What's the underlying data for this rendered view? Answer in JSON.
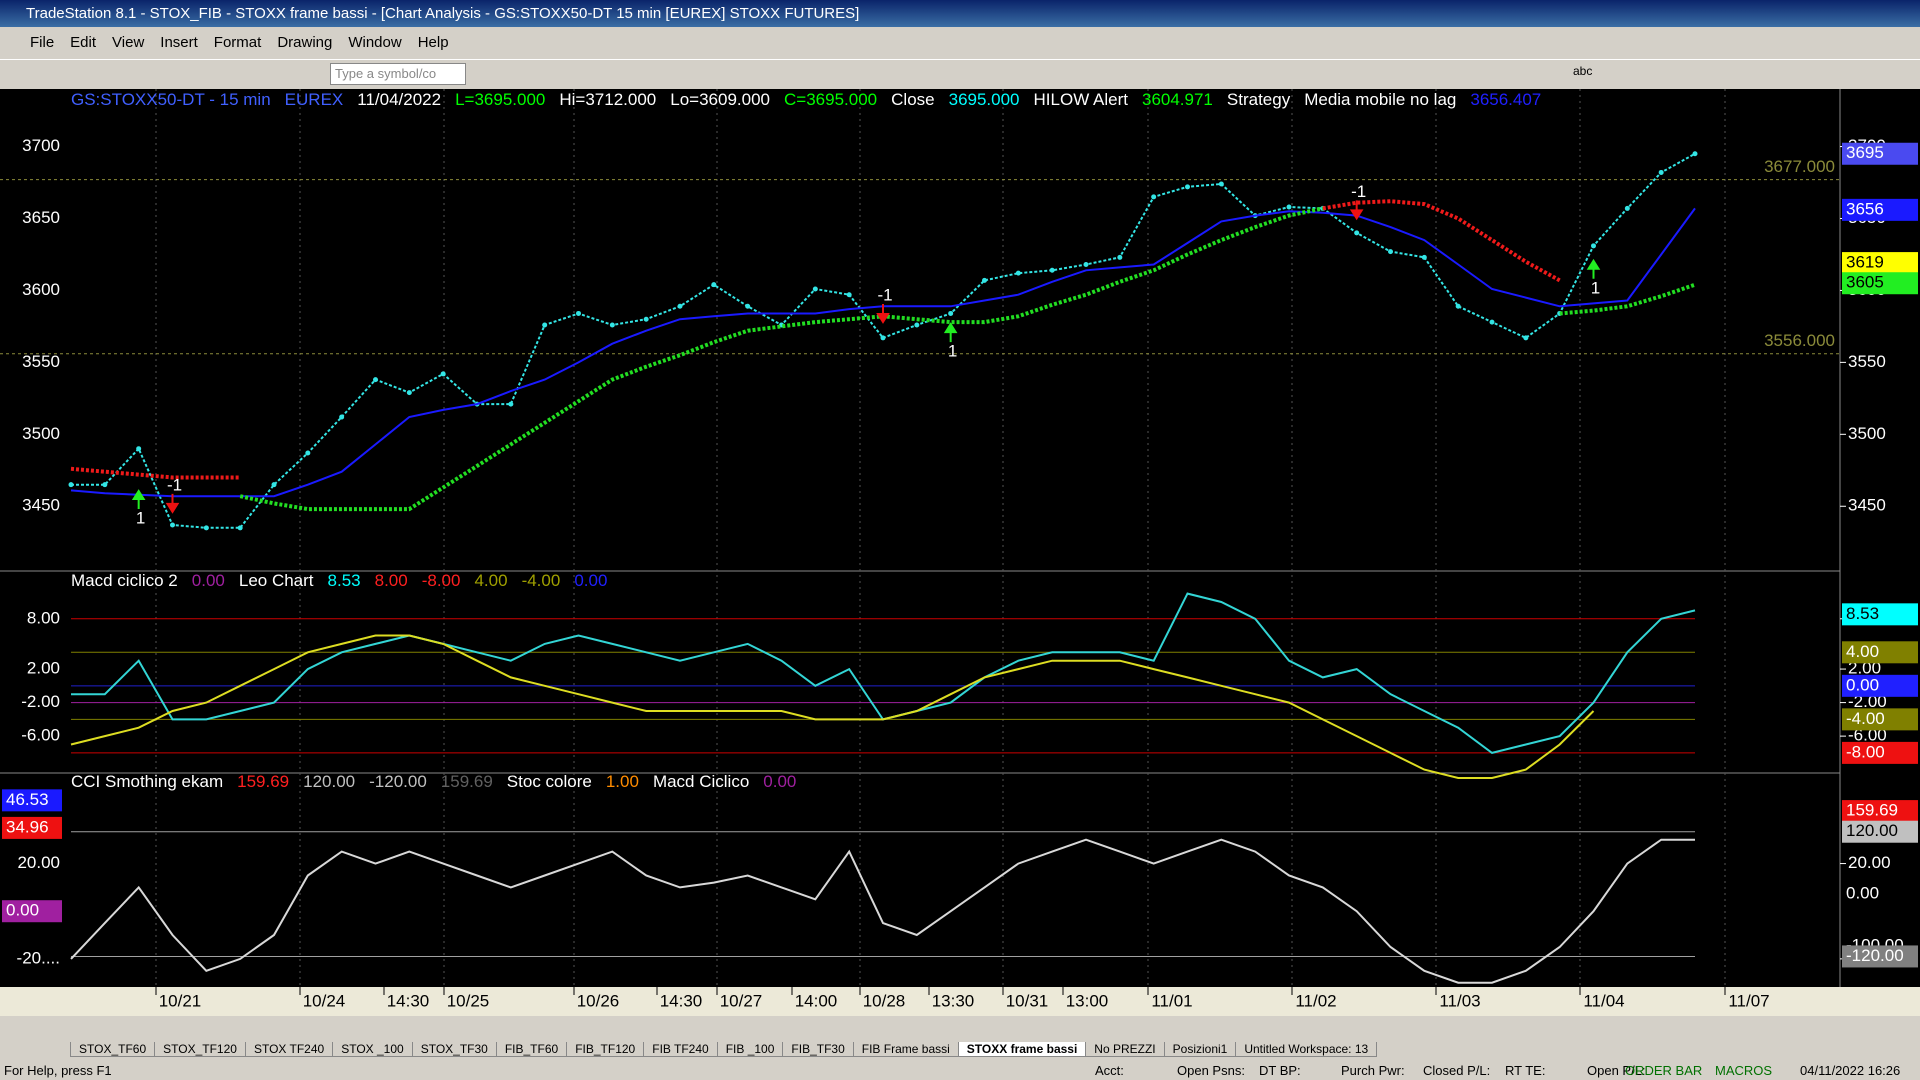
{
  "window": {
    "title": "TradeStation 8.1 - STOX_FIB - STOXX frame bassi - [Chart Analysis - GS:STOXX50-DT  15 min  [EUREX] STOXX FUTURES]"
  },
  "menu": [
    "File",
    "Edit",
    "View",
    "Insert",
    "Format",
    "Drawing",
    "Window",
    "Help"
  ],
  "toolbar": {
    "symbol_box": "Type a symbol/co",
    "text_tool": "abc"
  },
  "price_pane": {
    "header": [
      {
        "text": "GS:STOXX50-DT - 15 min",
        "color": "#4060ff"
      },
      {
        "text": "EUREX",
        "color": "#4060ff"
      },
      {
        "text": "11/04/2022",
        "color": "#ffffff"
      },
      {
        "text": "L=3695.000",
        "color": "#00ff00"
      },
      {
        "text": "Hi=3712.000",
        "color": "#ffffff"
      },
      {
        "text": "Lo=3609.000",
        "color": "#ffffff"
      },
      {
        "text": "C=3695.000",
        "color": "#00ff00"
      },
      {
        "text": "Close",
        "color": "#ffffff"
      },
      {
        "text": "3695.000",
        "color": "#00ffff"
      },
      {
        "text": "HILOW Alert",
        "color": "#ffffff"
      },
      {
        "text": "3604.971",
        "color": "#00ff00"
      },
      {
        "text": "Strategy",
        "color": "#ffffff"
      },
      {
        "text": "Media mobile no lag",
        "color": "#ffffff"
      },
      {
        "text": "3656.407",
        "color": "#2020ff"
      }
    ],
    "chart": {
      "type": "line",
      "ylim": [
        3405,
        3740
      ],
      "yticks": [
        3450,
        3500,
        3550,
        3600,
        3650,
        3700
      ],
      "series": [
        {
          "name": "Close",
          "color": "#33e5e5",
          "values": [
            3465,
            3465,
            3490,
            3437,
            3435,
            3435,
            3465,
            3487,
            3512,
            3538,
            3529,
            3542,
            3521,
            3521,
            3576,
            3584,
            3576,
            3580,
            3589,
            3604,
            3589,
            3576,
            3601,
            3597,
            3567,
            3576,
            3584,
            3607,
            3612,
            3614,
            3618,
            3623,
            3665,
            3672,
            3674,
            3652,
            3658,
            3657,
            3640,
            3627,
            3623,
            3589,
            3578,
            3567,
            3584,
            3631,
            3657,
            3682,
            3695
          ]
        },
        {
          "name": "Media mobile no lag",
          "color": "#1a1aff",
          "values": [
            3461,
            3459,
            3458,
            3457,
            3457,
            3457,
            3457,
            3465,
            3474,
            3493,
            3512,
            3517,
            3521,
            3530,
            3538,
            3550,
            3563,
            3572,
            3580,
            3582,
            3584,
            3584,
            3584,
            3587,
            3589,
            3589,
            3589,
            3593,
            3597,
            3606,
            3614,
            3616,
            3618,
            3633,
            3648,
            3652,
            3655,
            3654,
            3652,
            3644,
            3635,
            3618,
            3601,
            3595,
            3589,
            3591,
            3593,
            3625,
            3657
          ]
        },
        {
          "name": "HILOW Alert",
          "color": "#22dd22",
          "values": [
            null,
            null,
            null,
            null,
            null,
            3457,
            3452,
            3448,
            3448,
            3448,
            3448,
            3463,
            3478,
            3493,
            3508,
            3523,
            3538,
            3547,
            3555,
            3564,
            3572,
            3575,
            3578,
            3580,
            3582,
            3580,
            3578,
            3578,
            3582,
            3590,
            3597,
            3606,
            3614,
            3625,
            3635,
            3644,
            3652,
            3657,
            null,
            null,
            null,
            null,
            null,
            null,
            3584,
            3586,
            3589,
            3596,
            3604
          ]
        },
        {
          "name": "HILOW Alert",
          "color": "#ee1a1a",
          "values": [
            3476,
            3474,
            3472,
            3470,
            3470,
            3470,
            null,
            null,
            null,
            null,
            null,
            null,
            null,
            null,
            null,
            null,
            null,
            null,
            null,
            null,
            null,
            null,
            null,
            null,
            null,
            null,
            null,
            null,
            null,
            null,
            null,
            null,
            null,
            null,
            null,
            null,
            null,
            3657,
            3661,
            3662,
            3660,
            3650,
            3635,
            3620,
            3607,
            null,
            null,
            null,
            null
          ]
        }
      ],
      "signals": [
        {
          "x": 2,
          "y": 3462,
          "value": 1
        },
        {
          "x": 3,
          "y": 3460,
          "value": -1
        },
        {
          "x": 24,
          "y": 3592,
          "value": -1
        },
        {
          "x": 26,
          "y": 3578,
          "value": 1
        },
        {
          "x": 38,
          "y": 3664,
          "value": -1
        },
        {
          "x": 45,
          "y": 3622,
          "value": 1
        }
      ],
      "ref_lines": [
        {
          "value": 3677,
          "label": "3677.000"
        },
        {
          "value": 3556,
          "label": "3556.000"
        }
      ],
      "badges": [
        {
          "value": 3695,
          "color": "#4a4af0"
        },
        {
          "value": 3656,
          "color": "#1a1aff"
        },
        {
          "value": 3619,
          "color": "#ffff00"
        },
        {
          "value": 3605,
          "color": "#22ee22"
        }
      ]
    }
  },
  "macd_pane": {
    "header": [
      {
        "text": "Macd ciclico 2",
        "color": "#ffffff"
      },
      {
        "text": "0.00",
        "color": "#a020a0"
      },
      {
        "text": "Leo Chart",
        "color": "#ffffff"
      },
      {
        "text": "8.53",
        "color": "#00ffff"
      },
      {
        "text": "8.00",
        "color": "#ff2020"
      },
      {
        "text": "-8.00",
        "color": "#ff2020"
      },
      {
        "text": "4.00",
        "color": "#a0a000"
      },
      {
        "text": "-4.00",
        "color": "#a0a000"
      },
      {
        "text": "0.00",
        "color": "#2020ff"
      }
    ],
    "chart": {
      "type": "line",
      "ylim": [
        -10.4,
        13.7
      ],
      "yticks": [
        {
          "value": 8,
          "label": "8.00"
        },
        {
          "value": 2,
          "label": "2.00"
        },
        {
          "value": -2,
          "label": "-2.00"
        },
        {
          "value": -6,
          "label": "-6.00"
        }
      ],
      "levels": [
        {
          "value": 8,
          "color": "#cc0000"
        },
        {
          "value": 4,
          "color": "#808000"
        },
        {
          "value": 0,
          "color": "#2020cc"
        },
        {
          "value": -2,
          "color": "#a020a0"
        },
        {
          "value": -4,
          "color": "#808000"
        },
        {
          "value": -8,
          "color": "#cc0000"
        }
      ],
      "series": [
        {
          "name": "Leo Chart",
          "color": "#33d5d5",
          "values": [
            -1,
            -1,
            3,
            -4,
            -4,
            -3,
            -2,
            2,
            4,
            5,
            6,
            5,
            4,
            3,
            5,
            6,
            5,
            4,
            3,
            4,
            5,
            3,
            0,
            2,
            -4,
            -3,
            -2,
            1,
            3,
            4,
            4,
            4,
            3,
            11,
            10,
            8,
            3,
            1,
            2,
            -1,
            -3,
            -5,
            -8,
            -7,
            -6,
            -2,
            4,
            8,
            9
          ]
        },
        {
          "name": "Macd ciclico 2",
          "color": "#dddd22",
          "values": [
            -7,
            -6,
            -5,
            -3,
            -2,
            0,
            2,
            4,
            5,
            6,
            6,
            5,
            3,
            1,
            0,
            -1,
            -2,
            -3,
            -3,
            -3,
            -3,
            -3,
            -4,
            -4,
            -4,
            -3,
            -1,
            1,
            2,
            3,
            3,
            3,
            2,
            1,
            0,
            -1,
            -2,
            -4,
            -6,
            -8,
            -10,
            -11,
            -11,
            -10,
            -7,
            -3,
            null,
            null,
            null
          ]
        }
      ],
      "badges": [
        {
          "value": 8.53,
          "color": "#00ffff"
        },
        {
          "value": 4,
          "label": "4.00",
          "color": "#808000"
        },
        {
          "value": 0,
          "label": "0.00",
          "color": "#2020ff"
        },
        {
          "value": -4,
          "label": "-4.00",
          "color": "#808000"
        },
        {
          "value": -8,
          "label": "-8.00",
          "color": "#ee1111"
        }
      ]
    }
  },
  "cci_pane": {
    "header": [
      {
        "text": "CCI Smothing ekam",
        "color": "#ffffff"
      },
      {
        "text": "159.69",
        "color": "#ff2020"
      },
      {
        "text": "120.00",
        "color": "#c0c0c0"
      },
      {
        "text": "-120.00",
        "color": "#c0c0c0"
      },
      {
        "text": "159.69",
        "color": "#606060"
      },
      {
        "text": "Stoc colore",
        "color": "#ffffff"
      },
      {
        "text": "1.00",
        "color": "#ff8c00"
      },
      {
        "text": "Macd Ciclico",
        "color": "#ffffff"
      },
      {
        "text": "0.00",
        "color": "#a020a0"
      }
    ],
    "chart": {
      "type": "line",
      "ylim": [
        -31.8,
        58
      ],
      "y2lim": [
        -178.8,
        233
      ],
      "yticks": [
        {
          "value": 20,
          "label": "20.00"
        },
        {
          "value": -20,
          "label": "-20...."
        }
      ],
      "left_badges": [
        {
          "value": 46.53,
          "color": "#1a1aff"
        },
        {
          "value": 34.96,
          "color": "#ee1111"
        },
        {
          "value": 0,
          "label": "0.00",
          "color": "#a020a0"
        }
      ],
      "right_badges": [
        {
          "value": 159.69,
          "color": "#ee1111"
        },
        {
          "value": 120,
          "label": "120.00",
          "color": "#c0c0c0"
        },
        {
          "value": 0,
          "label": "0.00",
          "color": "#000000"
        },
        {
          "value": -100,
          "label": "-100.00",
          "color": "#000000"
        },
        {
          "value": -120,
          "label": "-120.00",
          "color": "#808080"
        }
      ],
      "levels2": [
        {
          "value": 120,
          "color": "#a0a0a0"
        },
        {
          "value": -120,
          "color": "#a0a0a0"
        }
      ],
      "series": [
        {
          "name": "CCI Smothing ekam",
          "color": "#d8d8d8",
          "values": [
            -20,
            -5,
            10,
            -10,
            -25,
            -20,
            -10,
            15,
            25,
            20,
            25,
            20,
            15,
            10,
            15,
            20,
            25,
            15,
            10,
            12,
            15,
            10,
            5,
            25,
            -5,
            -10,
            0,
            10,
            20,
            25,
            30,
            25,
            20,
            25,
            30,
            25,
            15,
            10,
            0,
            -15,
            -25,
            -30,
            -30,
            -25,
            -15,
            0,
            20,
            30,
            30
          ]
        }
      ]
    }
  },
  "x_labels": [
    "10/21",
    "10/24",
    "14:30",
    "10/25",
    "10/26",
    "14:30",
    "10/27",
    "14:00",
    "10/28",
    "13:30",
    "10/31",
    "13:00",
    "11/01",
    "11/02",
    "11/03",
    "11/04",
    "11/07"
  ],
  "tabs": [
    "STOX_TF60",
    "STOX_TF120",
    "STOX TF240",
    "STOX _100",
    "STOX_TF30",
    "FIB_TF60",
    "FIB_TF120",
    "FIB TF240",
    "FIB _100",
    "FIB_TF30",
    "FIB Frame bassi",
    "STOXX frame bassi",
    "No PREZZI",
    "Posizioni1",
    "Untitled Workspace:  13"
  ],
  "status": {
    "help": "For Help, press F1",
    "fields": [
      "Acct:",
      "Open Psns:",
      "DT BP:",
      "Purch Pwr:",
      "Closed P/L:",
      "RT TE:",
      "Open P/L:"
    ],
    "order_bar": "ORDER BAR",
    "macros": "MACROS",
    "clock": "04/11/2022 16:26"
  }
}
